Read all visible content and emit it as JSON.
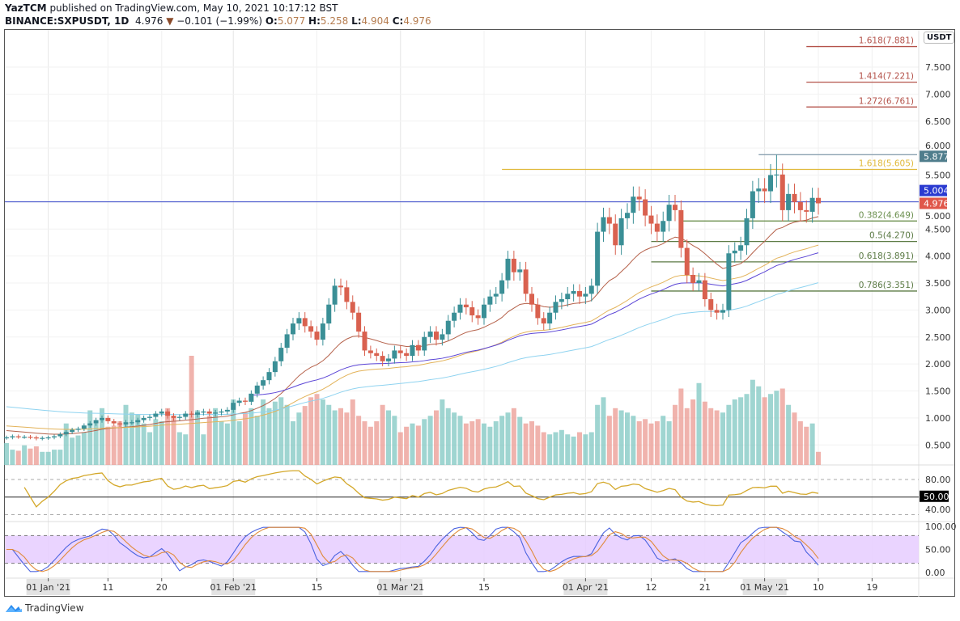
{
  "header": {
    "author": "YazTCM",
    "published_text": "published on TradingView.com, May 10, 2021 10:17:12 BST",
    "symbol": "BINANCE:SXPUSDT, 1D",
    "last": "4.976",
    "change_icon": "triangle-down-icon",
    "change": "−0.101 (−1.99%)",
    "o_label": "O:",
    "o": "5.077",
    "h_label": "H:",
    "h": "5.258",
    "l_label": "L:",
    "l": "4.904",
    "c_label": "C:",
    "c": "4.976"
  },
  "footer": {
    "brand": "TradingView"
  },
  "chart_data": {
    "type": "candlestick",
    "currency_label": "USDT",
    "start_date": "2020-12-25",
    "closes": [
      0.64,
      0.66,
      0.65,
      0.65,
      0.64,
      0.62,
      0.63,
      0.64,
      0.66,
      0.7,
      0.74,
      0.78,
      0.8,
      0.86,
      0.9,
      0.96,
      1.0,
      0.94,
      0.9,
      0.88,
      0.92,
      0.92,
      0.96,
      1.0,
      1.02,
      1.08,
      1.12,
      1.04,
      1.0,
      1.02,
      1.08,
      1.06,
      1.1,
      1.12,
      1.08,
      1.1,
      1.12,
      1.15,
      1.28,
      1.32,
      1.3,
      1.45,
      1.6,
      1.7,
      1.85,
      2.05,
      2.3,
      2.55,
      2.75,
      2.85,
      2.7,
      2.6,
      2.45,
      2.75,
      3.1,
      3.45,
      3.42,
      3.15,
      2.95,
      2.6,
      2.25,
      2.2,
      2.15,
      2.05,
      2.1,
      2.25,
      2.2,
      2.15,
      2.35,
      2.25,
      2.5,
      2.6,
      2.45,
      2.55,
      2.8,
      2.95,
      3.1,
      3.05,
      2.9,
      2.85,
      3.1,
      3.25,
      3.3,
      3.55,
      3.95,
      3.7,
      3.75,
      3.3,
      3.1,
      2.85,
      2.75,
      2.95,
      3.15,
      3.2,
      3.3,
      3.35,
      3.25,
      3.3,
      3.45,
      4.45,
      4.72,
      4.6,
      4.2,
      4.7,
      4.8,
      5.1,
      5.05,
      4.75,
      4.6,
      4.45,
      4.65,
      4.95,
      4.85,
      4.15,
      3.65,
      3.5,
      3.55,
      3.2,
      3.0,
      2.95,
      3.0,
      4.05,
      4.1,
      4.2,
      4.7,
      5.2,
      5.25,
      5.2,
      5.5,
      5.51,
      4.85,
      5.15,
      5.0,
      4.85,
      4.82,
      5.077,
      4.976
    ],
    "notable_high": {
      "date": "2021-05-03",
      "value": 5.877
    },
    "volume": [
      20,
      14,
      13,
      18,
      15,
      17,
      12,
      12,
      14,
      14,
      38,
      25,
      27,
      30,
      50,
      38,
      52,
      35,
      36,
      40,
      55,
      48,
      46,
      38,
      30,
      42,
      40,
      52,
      45,
      30,
      28,
      100,
      50,
      28,
      45,
      52,
      40,
      38,
      60,
      40,
      48,
      52,
      45,
      60,
      52,
      58,
      62,
      55,
      40,
      48,
      54,
      62,
      65,
      60,
      55,
      50,
      52,
      48,
      60,
      45,
      40,
      35,
      40,
      55,
      50,
      45,
      30,
      35,
      38,
      36,
      42,
      45,
      50,
      60,
      52,
      48,
      45,
      38,
      40,
      42,
      38,
      35,
      40,
      45,
      48,
      52,
      44,
      38,
      40,
      36,
      30,
      28,
      30,
      32,
      28,
      26,
      30,
      28,
      30,
      55,
      62,
      45,
      52,
      50,
      48,
      45,
      40,
      42,
      38,
      40,
      45,
      40,
      55,
      70,
      52,
      60,
      75,
      58,
      52,
      50,
      48,
      55,
      60,
      62,
      65,
      78,
      72,
      62,
      65,
      68,
      70,
      55,
      48,
      40,
      35,
      38,
      12
    ],
    "price_axis": {
      "min": 0.5,
      "max": 7.5,
      "step": 0.5,
      "labels": [
        "0.500",
        "1.000",
        "1.500",
        "2.000",
        "2.500",
        "3.000",
        "3.500",
        "4.000",
        "4.500",
        "5.000",
        "5.500",
        "6.000",
        "6.500",
        "7.000",
        "7.500"
      ]
    },
    "price_tags": [
      {
        "value": 5.877,
        "label": "5.877",
        "color": "#4f7d8c"
      },
      {
        "value": 5.004,
        "label": "5.004",
        "color": "#2b3bd1"
      },
      {
        "value": 4.976,
        "label": "4.976",
        "color": "#e0574a"
      }
    ],
    "horizontal_line": {
      "value": 5.004,
      "color": "#3646c8"
    },
    "fib_levels": [
      {
        "label": "1.618(7.881)",
        "value": 7.881,
        "color": "#b4524a",
        "from": "2021-05-08"
      },
      {
        "label": "1.414(7.221)",
        "value": 7.221,
        "color": "#b4524a",
        "from": "2021-05-08"
      },
      {
        "label": "1.272(6.761)",
        "value": 6.761,
        "color": "#b4524a",
        "from": "2021-05-08"
      },
      {
        "label": "",
        "value": 5.877,
        "color": "#8aa0b0",
        "from": "2021-04-30"
      },
      {
        "label": "1.618(5.605)",
        "value": 5.605,
        "color": "#e0b93a",
        "from": "2021-03-18"
      },
      {
        "label": "0.382(4.649)",
        "value": 4.649,
        "color": "#6b8f4e",
        "from": "2021-04-17"
      },
      {
        "label": "0.5(4.270)",
        "value": 4.27,
        "color": "#5b7a44",
        "from": "2021-04-12"
      },
      {
        "label": "0.618(3.891)",
        "value": 3.891,
        "color": "#5b7a44",
        "from": "2021-04-12"
      },
      {
        "label": "0.786(3.351)",
        "value": 3.351,
        "color": "#5b7a44",
        "from": "2021-04-12"
      }
    ],
    "moving_averages": [
      {
        "name": "MA20",
        "color": "#b5614a",
        "period": 20,
        "seed": 0.78
      },
      {
        "name": "MA50",
        "color": "#e3b35a",
        "period": 50,
        "seed": 0.86
      },
      {
        "name": "MA100",
        "color": "#8fd3f0",
        "period": 100,
        "seed": 1.22
      },
      {
        "name": "MA200",
        "color": "#5b45d6",
        "period": 60,
        "seed": 1.42,
        "start": 41
      }
    ],
    "rsi": {
      "labels": [
        "80.00",
        "40.00"
      ],
      "midline_label": "50.00",
      "color": "#d4a82a"
    },
    "stoch_rsi": {
      "labels": [
        "100.00",
        "50.00",
        "0.00"
      ],
      "k_color": "#4b63e0",
      "d_color": "#e08a3a",
      "band_color": "#e6ccff"
    },
    "time_axis": [
      {
        "label": "01 Jan '21",
        "day": 7,
        "major": true
      },
      {
        "label": "11",
        "day": 17
      },
      {
        "label": "20",
        "day": 26
      },
      {
        "label": "01 Feb '21",
        "day": 38,
        "major": true
      },
      {
        "label": "15",
        "day": 52
      },
      {
        "label": "01 Mar '21",
        "day": 66,
        "major": true
      },
      {
        "label": "15",
        "day": 80
      },
      {
        "label": "01 Apr '21",
        "day": 97,
        "major": true
      },
      {
        "label": "12",
        "day": 108
      },
      {
        "label": "21",
        "day": 117
      },
      {
        "label": "01 May '21",
        "day": 127,
        "major": true
      },
      {
        "label": "10",
        "day": 136
      },
      {
        "label": "19",
        "day": 145
      }
    ]
  }
}
